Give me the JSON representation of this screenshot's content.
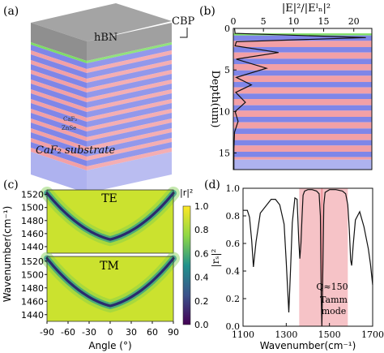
{
  "colors": {
    "pink": "#f2a0a6",
    "blue": "#7f86e8",
    "cbp_green": "#7fdd66",
    "hbn_gray": "#9a9a9a",
    "caf2_lavender": "#aeb2ef",
    "tamm_band": "#f6c3c7",
    "tamm_line": "#ee8a93"
  },
  "panel_a": {
    "label": "(a)",
    "hbn_label": "hBN",
    "cbp_label": "CBP",
    "caf2_label": "CaF₂",
    "znse_label": "ZnSe",
    "substrate_label": "CaF₂ substrate"
  },
  "panel_b": {
    "label": "(b)",
    "top_axis_label": "|E|²/|Eᴵₙ|²",
    "ylabel": "Depth(um)",
    "top_ticks": [
      "0",
      "5",
      "10",
      "15",
      "20"
    ],
    "left_ticks": [
      "0",
      "5",
      "10",
      "15"
    ]
  },
  "panel_c": {
    "label": "(c)",
    "te_label": "TE",
    "tm_label": "TM",
    "ylabel": "Wavenumber(cm⁻¹)",
    "xlabel": "Angle (°)",
    "y_ticks": [
      "1520",
      "1500",
      "1480",
      "1460",
      "1440"
    ],
    "x_ticks": [
      "-90",
      "-60",
      "-30",
      "0",
      "30",
      "60",
      "90"
    ],
    "colorbar_title": "|r|²",
    "colorbar_ticks": [
      "1.0",
      "0.8",
      "0.6",
      "0.4",
      "0.2",
      "0.0"
    ]
  },
  "panel_d": {
    "label": "(d)",
    "ylabel": "|rₛ|²",
    "xlabel": "Wavenumber(cm⁻¹)",
    "y_ticks": [
      "1.0",
      "0.8",
      "0.6",
      "0.4",
      "0.2",
      "0.0"
    ],
    "x_ticks": [
      "1100",
      "1300",
      "1500",
      "1700"
    ],
    "q_label": "Q≈150",
    "tamm_label_1": "Tamm",
    "tamm_label_2": "mode"
  },
  "chart_data": [
    {
      "type": "line",
      "panel": "b",
      "xlabel": "|E|²/|Eᴵₙ|²",
      "ylabel": "Depth(um)",
      "xlim": [
        0,
        23
      ],
      "ylim": [
        17,
        0
      ],
      "x": [
        0.2,
        0.3,
        22,
        0.5,
        0.3,
        7.5,
        0.5,
        5.5,
        0.5,
        3.0,
        0.4,
        2.0,
        0.3,
        0.8,
        0.2,
        0.1,
        0.1
      ],
      "y": [
        0.0,
        0.6,
        1.1,
        1.6,
        2.1,
        2.9,
        3.7,
        4.8,
        5.9,
        6.8,
        7.7,
        8.9,
        10.0,
        11.2,
        12.5,
        14.5,
        17.0
      ]
    },
    {
      "type": "line",
      "panel": "d",
      "xlabel": "Wavenumber(cm⁻¹)",
      "ylabel": "|rₛ|²",
      "xlim": [
        1100,
        1700
      ],
      "ylim": [
        0,
        1.0
      ],
      "x": [
        1100,
        1120,
        1130,
        1140,
        1148,
        1160,
        1180,
        1230,
        1250,
        1270,
        1290,
        1300,
        1312,
        1320,
        1328,
        1340,
        1350,
        1358,
        1363,
        1368,
        1373,
        1378,
        1385,
        1400,
        1420,
        1440,
        1452,
        1458,
        1462,
        1465,
        1468,
        1474,
        1480,
        1500,
        1530,
        1560,
        1575,
        1585,
        1592,
        1598,
        1603,
        1610,
        1620,
        1640,
        1660,
        1680,
        1690,
        1700
      ],
      "y": [
        0.84,
        0.84,
        0.79,
        0.62,
        0.43,
        0.61,
        0.82,
        0.92,
        0.92,
        0.88,
        0.74,
        0.47,
        0.1,
        0.42,
        0.75,
        0.93,
        0.92,
        0.62,
        0.49,
        0.6,
        0.79,
        0.95,
        0.98,
        0.99,
        0.99,
        0.98,
        0.96,
        0.8,
        0.2,
        0.0,
        0.25,
        0.88,
        0.97,
        0.99,
        0.99,
        0.98,
        0.96,
        0.88,
        0.7,
        0.48,
        0.44,
        0.59,
        0.77,
        0.83,
        0.72,
        0.56,
        0.45,
        0.3
      ]
    },
    {
      "type": "heatmap",
      "panel": "c",
      "title": "TE",
      "xlabel": "Angle (°)",
      "ylabel": "Wavenumber(cm⁻¹)",
      "xlim": [
        -90,
        90
      ],
      "ylim": [
        1430,
        1527
      ],
      "ridge_angle": [
        -90,
        -60,
        -30,
        0,
        30,
        60,
        90
      ],
      "ridge_wavenumber": [
        1522,
        1495,
        1462,
        1451,
        1462,
        1495,
        1522
      ],
      "zlim": [
        0,
        1.0
      ]
    },
    {
      "type": "heatmap",
      "panel": "c",
      "title": "TM",
      "xlabel": "Angle (°)",
      "ylabel": "Wavenumber(cm⁻¹)",
      "xlim": [
        -90,
        90
      ],
      "ylim": [
        1430,
        1527
      ],
      "ridge_angle": [
        -90,
        -60,
        -30,
        0,
        30,
        60,
        90
      ],
      "ridge_wavenumber": [
        1524,
        1497,
        1463,
        1453,
        1463,
        1497,
        1524
      ],
      "zlim": [
        0,
        1.0
      ]
    }
  ]
}
